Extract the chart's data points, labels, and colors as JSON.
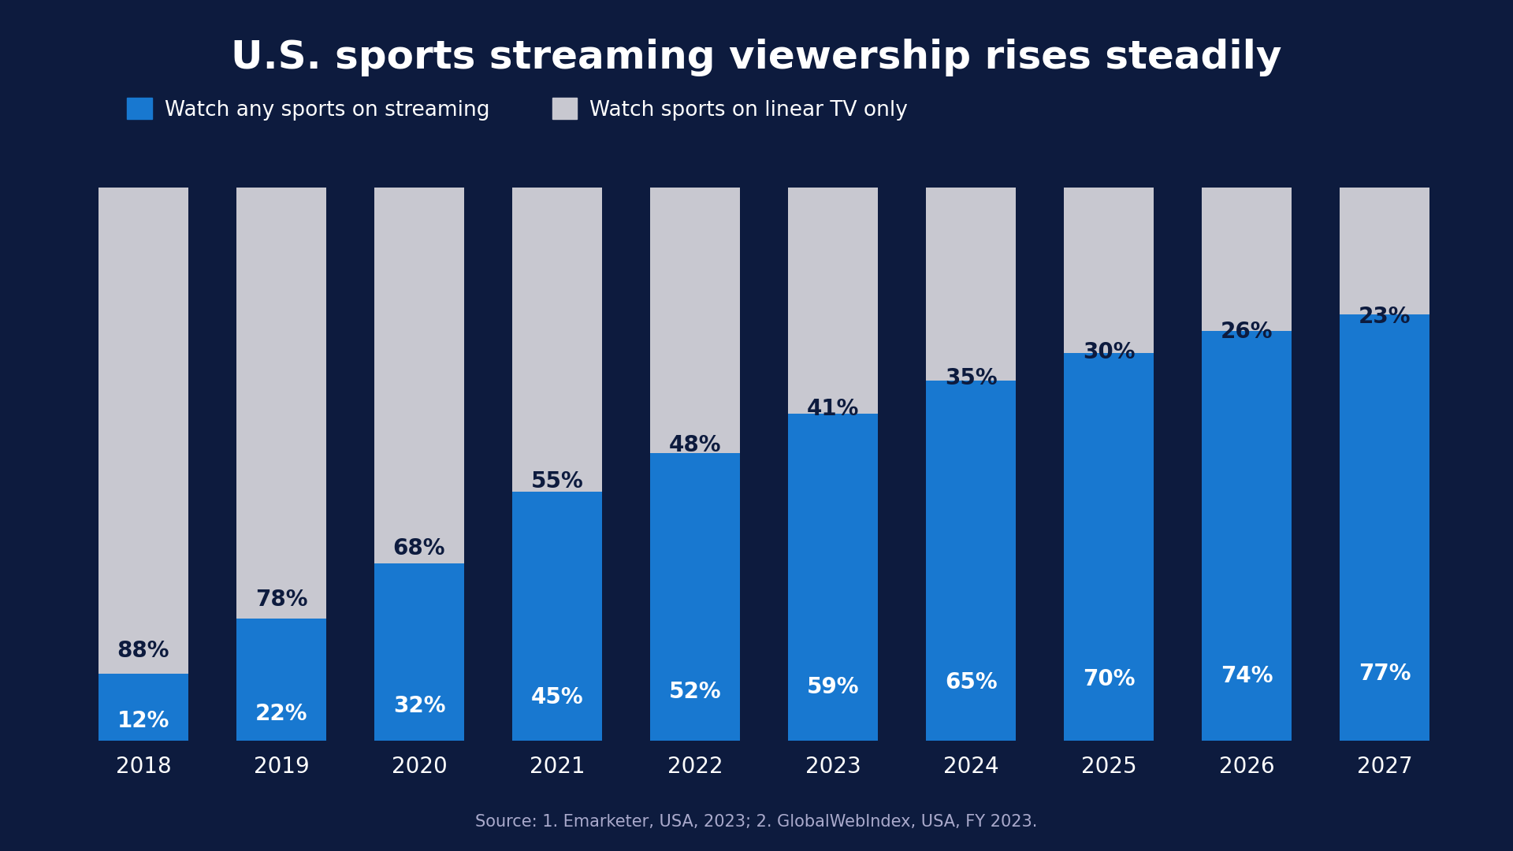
{
  "title": "U.S. sports streaming viewership rises steadily",
  "years": [
    "2018",
    "2019",
    "2020",
    "2021",
    "2022",
    "2023",
    "2024",
    "2025",
    "2026",
    "2027"
  ],
  "streaming_pct": [
    12,
    22,
    32,
    45,
    52,
    59,
    65,
    70,
    74,
    77
  ],
  "linear_pct": [
    88,
    78,
    68,
    55,
    48,
    41,
    35,
    30,
    26,
    23
  ],
  "streaming_color": "#1878D0",
  "linear_color": "#C8C8D0",
  "background_color": "#0D1B3E",
  "text_color": "#FFFFFF",
  "bar_width": 0.65,
  "legend_streaming": "Watch any sports on streaming",
  "legend_linear": "Watch sports on linear TV only",
  "source_text": "Source: 1. Emarketer, USA, 2023; 2. GlobalWebIndex, USA, FY 2023.",
  "title_fontsize": 36,
  "label_fontsize": 20,
  "tick_fontsize": 20,
  "legend_fontsize": 19,
  "source_fontsize": 15,
  "streaming_label_color": "#FFFFFF",
  "linear_label_color": "#0D1B3E"
}
